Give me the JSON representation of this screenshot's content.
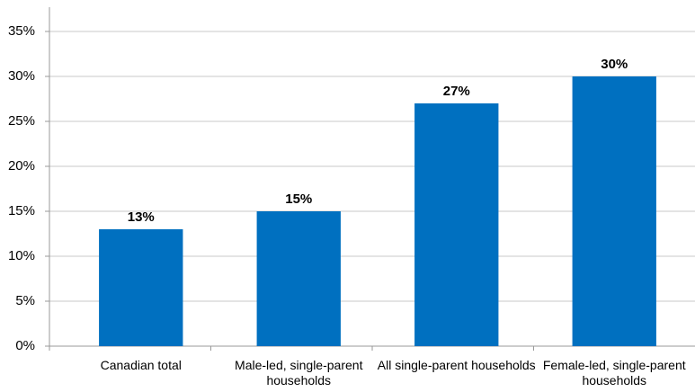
{
  "chart_data": {
    "type": "bar",
    "categories": [
      "Canadian total",
      "Male-led, single-parent households",
      "All single-parent households",
      "Female-led, single-parent households"
    ],
    "values": [
      13,
      15,
      27,
      30
    ],
    "value_labels": [
      "13%",
      "15%",
      "27%",
      "30%"
    ],
    "color": "#0070c0",
    "ylim": [
      0,
      35
    ],
    "yticks": [
      {
        "value": 0,
        "label": "0%"
      },
      {
        "value": 5,
        "label": "5%"
      },
      {
        "value": 10,
        "label": "10%"
      },
      {
        "value": 15,
        "label": "15%"
      },
      {
        "value": 20,
        "label": "20%"
      },
      {
        "value": 25,
        "label": "25%"
      },
      {
        "value": 30,
        "label": "30%"
      },
      {
        "value": 35,
        "label": "35%"
      }
    ],
    "grid": true
  }
}
